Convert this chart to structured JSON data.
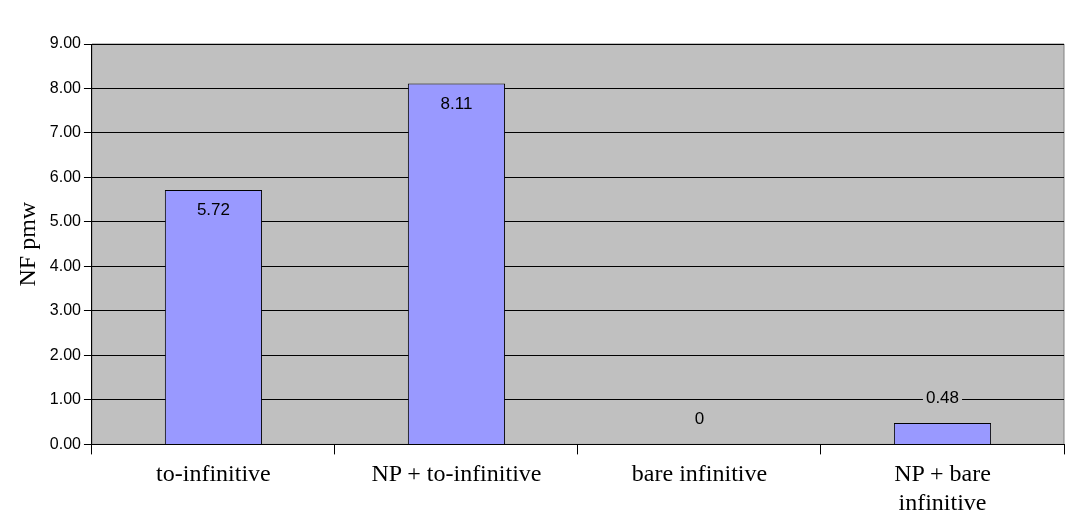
{
  "chart_data": {
    "type": "bar",
    "ylabel": "NF pmw",
    "categories": [
      "to-infinitive",
      "NP + to-infinitive",
      "bare infinitive",
      "NP + bare infinitive"
    ],
    "values": [
      5.72,
      8.11,
      0,
      0.48
    ],
    "color": "#9999ff",
    "ylim": [
      0,
      9
    ],
    "yticks": [
      {
        "value": 0,
        "label": "0.00"
      },
      {
        "value": 1,
        "label": "1.00"
      },
      {
        "value": 2,
        "label": "2.00"
      },
      {
        "value": 3,
        "label": "3.00"
      },
      {
        "value": 4,
        "label": "4.00"
      },
      {
        "value": 5,
        "label": "5.00"
      },
      {
        "value": 6,
        "label": "6.00"
      },
      {
        "value": 7,
        "label": "7.00"
      },
      {
        "value": 8,
        "label": "8.00"
      },
      {
        "value": 9,
        "label": "9.00"
      }
    ],
    "grid": "y",
    "legend": false,
    "data_labels": true
  }
}
